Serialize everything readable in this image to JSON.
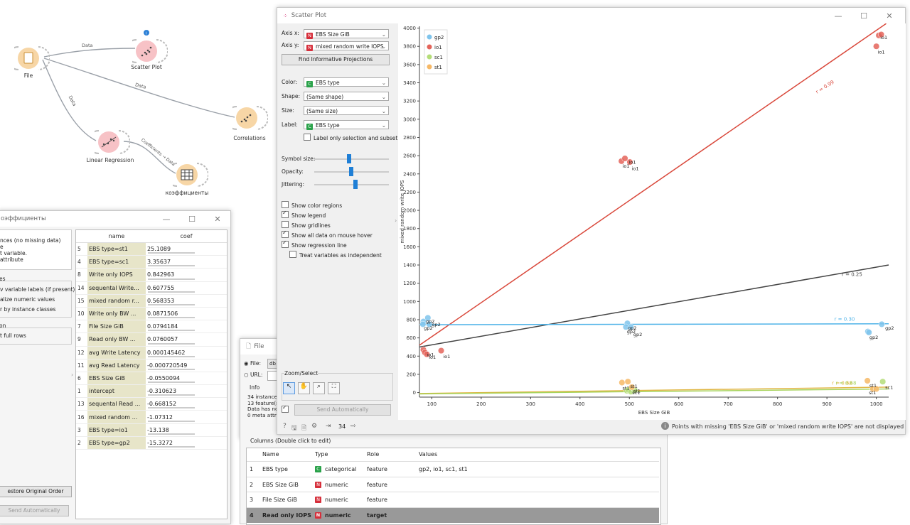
{
  "workflow": {
    "nodes": {
      "file": "File",
      "scatter": "Scatter Plot",
      "correlations": "Correlations",
      "linreg": "Linear Regression",
      "coef_table": "коэффициенты"
    },
    "links": {
      "file_scatter": "Data",
      "file_corr": "Data",
      "file_linreg": "Data",
      "linreg_table": "Coefficients → Data"
    },
    "scatter_badge": "i"
  },
  "coef_window": {
    "title": "оэффициенты",
    "info_lines": [
      "nces (no missing data)",
      "e",
      "t variable.",
      "attribute"
    ],
    "section_label": "es",
    "options": [
      "v variable labels (if present)",
      "alize numeric values",
      "r by instance classes"
    ],
    "section2": "on",
    "select_full_rows": "t full rows",
    "restore_btn": "estore Original Order",
    "send_btn": "Send Automatically",
    "headers": [
      "name",
      "coef"
    ],
    "rows": [
      {
        "i": "5",
        "name": "EBS type=st1",
        "coef": "25.1089"
      },
      {
        "i": "4",
        "name": "EBS type=sc1",
        "coef": "3.35637"
      },
      {
        "i": "8",
        "name": "Write only IOPS",
        "coef": "0.842963"
      },
      {
        "i": "14",
        "name": "sequental Write...",
        "coef": "0.607755"
      },
      {
        "i": "15",
        "name": "mixed random r...",
        "coef": "0.568353"
      },
      {
        "i": "10",
        "name": "Write only BW ...",
        "coef": "0.0871506"
      },
      {
        "i": "7",
        "name": "File Size GiB",
        "coef": "0.0794184"
      },
      {
        "i": "9",
        "name": "Read only BW ...",
        "coef": "0.0760057"
      },
      {
        "i": "12",
        "name": "avg Write Latency",
        "coef": "0.000145462"
      },
      {
        "i": "11",
        "name": "avg Read Latency",
        "coef": "-0.000720549"
      },
      {
        "i": "6",
        "name": "EBS Size GiB",
        "coef": "-0.0550094"
      },
      {
        "i": "1",
        "name": "intercept",
        "coef": "-0.310623"
      },
      {
        "i": "13",
        "name": "sequental Read ...",
        "coef": "-0.668152"
      },
      {
        "i": "16",
        "name": "mixed random ...",
        "coef": "-1.07312"
      },
      {
        "i": "3",
        "name": "EBS type=io1",
        "coef": "-13.138"
      },
      {
        "i": "2",
        "name": "EBS type=gp2",
        "coef": "-15.3272"
      }
    ]
  },
  "file_window": {
    "title": "File",
    "file_label": "File:",
    "file_value": "db",
    "url_label": "URL:",
    "info_title": "Info",
    "info_lines": [
      "34 instance(",
      "13 feature(s",
      "Data has no",
      "0 meta attri"
    ],
    "send_btn": "Send Automatically",
    "count": "34"
  },
  "columns_panel": {
    "title": "Columns (Double click to edit)",
    "headers": [
      "Name",
      "Type",
      "Role",
      "Values"
    ],
    "rows": [
      {
        "i": "1",
        "name": "EBS type",
        "tag": "C",
        "type": "categorical",
        "role": "feature",
        "values": "gp2, io1, sc1, st1"
      },
      {
        "i": "2",
        "name": "EBS Size GiB",
        "tag": "N",
        "type": "numeric",
        "role": "feature",
        "values": ""
      },
      {
        "i": "3",
        "name": "File Size GiB",
        "tag": "N",
        "type": "numeric",
        "role": "feature",
        "values": ""
      },
      {
        "i": "4",
        "name": "Read only IOPS",
        "tag": "N",
        "type": "numeric",
        "role": "target",
        "values": ""
      }
    ]
  },
  "scatter_window": {
    "title": "Scatter Plot",
    "axis_x_label": "Axis x:",
    "axis_x_value": "EBS Size GiB",
    "axis_y_label": "Axis y:",
    "axis_y_value": "mixed random write IOPS",
    "find_btn": "Find Informative Projections",
    "color_label": "Color:",
    "color_value": "EBS type",
    "shape_label": "Shape:",
    "shape_value": "(Same shape)",
    "size_label": "Size:",
    "size_value": "(Same size)",
    "label_label": "Label:",
    "label_value": "EBS type",
    "label_only": "Label only selection and subset",
    "symbol_size": "Symbol size:",
    "opacity": "Opacity:",
    "jittering": "Jittering:",
    "checkboxes": [
      {
        "label": "Show color regions",
        "checked": false
      },
      {
        "label": "Show legend",
        "checked": true
      },
      {
        "label": "Show gridlines",
        "checked": false
      },
      {
        "label": "Show all data on mouse hover",
        "checked": true
      },
      {
        "label": "Show regression line",
        "checked": true
      }
    ],
    "treat_independent": "Treat variables as independent",
    "zoom_title": "Zoom/Select",
    "send_btn": "Send Automatically",
    "count": "34",
    "status_msg": "Points with missing 'EBS Size GiB' or 'mixed random write IOPS' are not displayed"
  },
  "chart_data": {
    "type": "scatter",
    "xlabel": "EBS Size GiB",
    "ylabel": "mixed random write IOPS",
    "xlim": [
      75,
      1025
    ],
    "ylim": [
      -50,
      4020
    ],
    "xticks": [
      100,
      200,
      300,
      400,
      500,
      600,
      700,
      800,
      900,
      1000
    ],
    "yticks": [
      0,
      200,
      400,
      600,
      800,
      1000,
      1200,
      1400,
      1600,
      1800,
      2000,
      2200,
      2400,
      2600,
      2800,
      3000,
      3200,
      3400,
      3600,
      3800,
      4000
    ],
    "legend": [
      "gp2",
      "io1",
      "sc1",
      "st1"
    ],
    "colors": {
      "gp2": "#7fc4ec",
      "io1": "#e4645a",
      "sc1": "#b4dd78",
      "st1": "#f6b866"
    },
    "series": [
      {
        "name": "gp2",
        "points": [
          [
            83,
            780
          ],
          [
            82,
            750
          ],
          [
            92,
            820
          ],
          [
            95,
            750
          ],
          [
            496,
            760
          ],
          [
            493,
            720
          ],
          [
            503,
            720
          ],
          [
            983,
            670
          ],
          [
            985,
            660
          ],
          [
            1011,
            750
          ]
        ]
      },
      {
        "name": "io1",
        "points": [
          [
            83,
            470
          ],
          [
            86,
            440
          ],
          [
            90,
            420
          ],
          [
            119,
            460
          ],
          [
            484,
            2540
          ],
          [
            491,
            2570
          ],
          [
            501,
            2530
          ],
          [
            1000,
            3800
          ],
          [
            1005,
            3920
          ],
          [
            1010,
            3930
          ]
        ]
      },
      {
        "name": "sc1",
        "points": [
          [
            495,
            20
          ],
          [
            498,
            30
          ],
          [
            503,
            10
          ],
          [
            511,
            25
          ],
          [
            1013,
            120
          ]
        ]
      },
      {
        "name": "st1",
        "points": [
          [
            485,
            110
          ],
          [
            497,
            120
          ],
          [
            505,
            60
          ],
          [
            982,
            130
          ],
          [
            993,
            40
          ],
          [
            1000,
            40
          ]
        ]
      }
    ],
    "regression": [
      {
        "name": "io1",
        "r": "r = 0.99",
        "from": [
          75,
          520
        ],
        "to": [
          1020,
          4050
        ]
      },
      {
        "name": "all",
        "r": "r = 0.25",
        "from": [
          75,
          500
        ],
        "to": [
          1025,
          1400
        ]
      },
      {
        "name": "gp2",
        "r": "r = 0.30",
        "from": [
          75,
          745
        ],
        "to": [
          1025,
          755
        ]
      },
      {
        "name": "st1",
        "r": "r = 0.68",
        "from": [
          75,
          -10
        ],
        "to": [
          1025,
          60
        ]
      },
      {
        "name": "sc1",
        "r": "r = 0.68",
        "from": [
          75,
          -15
        ],
        "to": [
          1025,
          40
        ]
      }
    ],
    "point_labels": [
      {
        "t": "gp2",
        "x": 88,
        "y": 765
      },
      {
        "t": "gp2",
        "x": 84,
        "y": 690
      },
      {
        "t": "gp2",
        "x": 100,
        "y": 730
      },
      {
        "t": "io1",
        "x": 90,
        "y": 400
      },
      {
        "t": "io1",
        "x": 94,
        "y": 370
      },
      {
        "t": "io1",
        "x": 123,
        "y": 380
      },
      {
        "t": "io1",
        "x": 486,
        "y": 2470
      },
      {
        "t": "io1",
        "x": 499,
        "y": 2510
      },
      {
        "t": "io1",
        "x": 505,
        "y": 2440
      },
      {
        "t": "gp2",
        "x": 497,
        "y": 690
      },
      {
        "t": "gp2",
        "x": 495,
        "y": 650
      },
      {
        "t": "gp2",
        "x": 508,
        "y": 620
      },
      {
        "t": "st1",
        "x": 486,
        "y": 30
      },
      {
        "t": "st1",
        "x": 502,
        "y": 50
      },
      {
        "t": "sc1",
        "x": 506,
        "y": -20
      },
      {
        "t": "st1",
        "x": 508,
        "y": 0
      },
      {
        "t": "io1",
        "x": 1003,
        "y": 3720
      },
      {
        "t": "io1",
        "x": 1008,
        "y": 3880
      },
      {
        "t": "gp2",
        "x": 986,
        "y": 590
      },
      {
        "t": "gp2",
        "x": 1018,
        "y": 690
      },
      {
        "t": "st1",
        "x": 986,
        "y": 60
      },
      {
        "t": "st1",
        "x": 985,
        "y": -20
      },
      {
        "t": "sc1",
        "x": 1018,
        "y": 40
      }
    ]
  }
}
